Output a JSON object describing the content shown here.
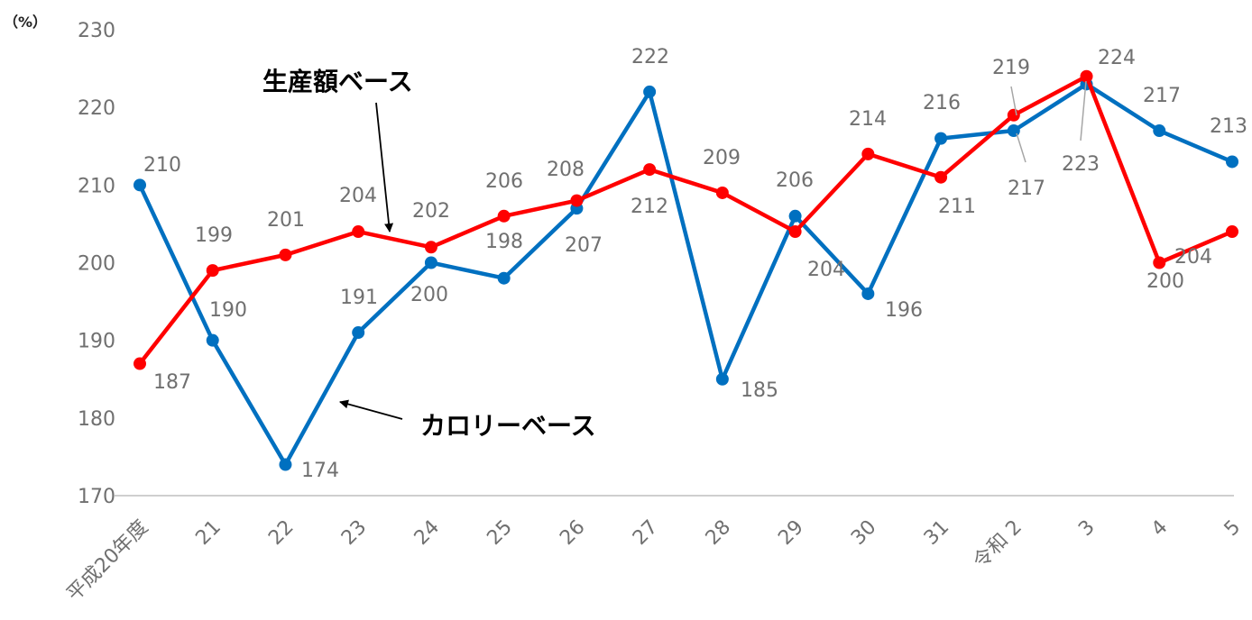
{
  "chart_data": {
    "type": "line",
    "unit_label": "（%）",
    "categories": [
      "平成20年度",
      "21",
      "22",
      "23",
      "24",
      "25",
      "26",
      "27",
      "28",
      "29",
      "30",
      "31",
      "令和 2",
      "3",
      "4",
      "5"
    ],
    "ylim": [
      170,
      230
    ],
    "yticks": [
      170,
      180,
      190,
      200,
      210,
      220,
      230
    ],
    "series": [
      {
        "name": "カロリーベース",
        "color": "#0070c0",
        "values": [
          210,
          190,
          174,
          191,
          200,
          198,
          207,
          222,
          185,
          206,
          196,
          216,
          217,
          223,
          217,
          213
        ]
      },
      {
        "name": "生産額ベース",
        "color": "#ff0000",
        "values": [
          187,
          199,
          201,
          204,
          202,
          206,
          208,
          212,
          209,
          204,
          214,
          211,
          219,
          224,
          200,
          204
        ]
      }
    ],
    "annotations": [
      {
        "text": "生産額ベース",
        "series": 1
      },
      {
        "text": "カロリーベース",
        "series": 0
      }
    ],
    "grid": false,
    "legend": "none"
  }
}
